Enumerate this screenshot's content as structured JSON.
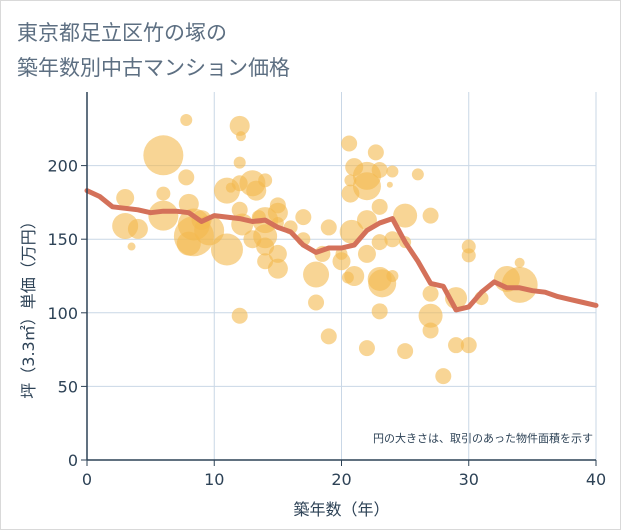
{
  "title_line1": "東京都足立区竹の塚の",
  "title_line2": "築年数別中古マンション価格",
  "chart_data": {
    "type": "scatter",
    "xlabel": "築年数（年）",
    "ylabel": "坪（3.3㎡）単価（万円）",
    "xlim": [
      0,
      40
    ],
    "ylim": [
      0,
      250
    ],
    "xticks": [
      0,
      10,
      20,
      30,
      40
    ],
    "yticks": [
      0,
      50,
      100,
      150,
      200
    ],
    "grid": true,
    "note": "円の大きさは、取引のあった物件面積を示す",
    "colors": {
      "bubble": "#f4b94e",
      "line": "#d4715a",
      "grid": "#c9d7e6",
      "axis": "#2d4256"
    },
    "points": [
      {
        "x": 3,
        "y": 178,
        "s": 9
      },
      {
        "x": 3,
        "y": 159,
        "s": 13
      },
      {
        "x": 3.5,
        "y": 145,
        "s": 4
      },
      {
        "x": 4,
        "y": 157,
        "s": 10
      },
      {
        "x": 6,
        "y": 207,
        "s": 20
      },
      {
        "x": 6,
        "y": 181,
        "s": 7
      },
      {
        "x": 6,
        "y": 166,
        "s": 15
      },
      {
        "x": 7.8,
        "y": 231,
        "s": 6
      },
      {
        "x": 7.8,
        "y": 192,
        "s": 8
      },
      {
        "x": 8,
        "y": 174,
        "s": 10
      },
      {
        "x": 8,
        "y": 147,
        "s": 12
      },
      {
        "x": 8.4,
        "y": 160,
        "s": 16
      },
      {
        "x": 8.4,
        "y": 152,
        "s": 20
      },
      {
        "x": 9,
        "y": 163,
        "s": 10
      },
      {
        "x": 9.6,
        "y": 156,
        "s": 15
      },
      {
        "x": 11,
        "y": 183,
        "s": 13
      },
      {
        "x": 11,
        "y": 143,
        "s": 16
      },
      {
        "x": 11.3,
        "y": 185,
        "s": 5
      },
      {
        "x": 12,
        "y": 227,
        "s": 10
      },
      {
        "x": 12.1,
        "y": 220,
        "s": 5
      },
      {
        "x": 12,
        "y": 202,
        "s": 6
      },
      {
        "x": 12,
        "y": 188,
        "s": 8
      },
      {
        "x": 12,
        "y": 170,
        "s": 8
      },
      {
        "x": 12.2,
        "y": 160,
        "s": 11
      },
      {
        "x": 12,
        "y": 98,
        "s": 8
      },
      {
        "x": 13,
        "y": 188,
        "s": 13
      },
      {
        "x": 13.3,
        "y": 183,
        "s": 10
      },
      {
        "x": 13,
        "y": 150,
        "s": 9
      },
      {
        "x": 13.5,
        "y": 165,
        "s": 7
      },
      {
        "x": 14,
        "y": 190,
        "s": 7
      },
      {
        "x": 14,
        "y": 163,
        "s": 13
      },
      {
        "x": 14,
        "y": 152,
        "s": 12
      },
      {
        "x": 14,
        "y": 145,
        "s": 9
      },
      {
        "x": 14,
        "y": 135,
        "s": 8
      },
      {
        "x": 15,
        "y": 173,
        "s": 8
      },
      {
        "x": 15,
        "y": 168,
        "s": 10
      },
      {
        "x": 15,
        "y": 161,
        "s": 6
      },
      {
        "x": 15,
        "y": 140,
        "s": 9
      },
      {
        "x": 15,
        "y": 130,
        "s": 10
      },
      {
        "x": 16,
        "y": 158,
        "s": 7
      },
      {
        "x": 17,
        "y": 165,
        "s": 8
      },
      {
        "x": 17,
        "y": 150,
        "s": 7
      },
      {
        "x": 18,
        "y": 126,
        "s": 13
      },
      {
        "x": 18,
        "y": 107,
        "s": 8
      },
      {
        "x": 18.5,
        "y": 140,
        "s": 8
      },
      {
        "x": 19,
        "y": 158,
        "s": 8
      },
      {
        "x": 19,
        "y": 84,
        "s": 8
      },
      {
        "x": 20,
        "y": 135,
        "s": 9
      },
      {
        "x": 20,
        "y": 140,
        "s": 6
      },
      {
        "x": 20.5,
        "y": 124,
        "s": 6
      },
      {
        "x": 20.6,
        "y": 215,
        "s": 8
      },
      {
        "x": 21,
        "y": 199,
        "s": 9
      },
      {
        "x": 20.7,
        "y": 190,
        "s": 6
      },
      {
        "x": 20.7,
        "y": 181,
        "s": 9
      },
      {
        "x": 20.8,
        "y": 155,
        "s": 12
      },
      {
        "x": 21,
        "y": 125,
        "s": 10
      },
      {
        "x": 22,
        "y": 193,
        "s": 14
      },
      {
        "x": 22,
        "y": 186,
        "s": 14
      },
      {
        "x": 22,
        "y": 163,
        "s": 10
      },
      {
        "x": 22,
        "y": 140,
        "s": 9
      },
      {
        "x": 22,
        "y": 76,
        "s": 8
      },
      {
        "x": 22.7,
        "y": 209,
        "s": 8
      },
      {
        "x": 23,
        "y": 197,
        "s": 8
      },
      {
        "x": 23,
        "y": 172,
        "s": 8
      },
      {
        "x": 23,
        "y": 148,
        "s": 8
      },
      {
        "x": 23,
        "y": 123,
        "s": 12
      },
      {
        "x": 23.2,
        "y": 120,
        "s": 14
      },
      {
        "x": 23,
        "y": 101,
        "s": 8
      },
      {
        "x": 24,
        "y": 196,
        "s": 6
      },
      {
        "x": 23.8,
        "y": 187,
        "s": 3
      },
      {
        "x": 24,
        "y": 150,
        "s": 8
      },
      {
        "x": 24,
        "y": 125,
        "s": 6
      },
      {
        "x": 25,
        "y": 166,
        "s": 12
      },
      {
        "x": 25,
        "y": 148,
        "s": 6
      },
      {
        "x": 25,
        "y": 74,
        "s": 8
      },
      {
        "x": 26,
        "y": 194,
        "s": 6
      },
      {
        "x": 27,
        "y": 166,
        "s": 8
      },
      {
        "x": 27,
        "y": 113,
        "s": 8
      },
      {
        "x": 27,
        "y": 98,
        "s": 12
      },
      {
        "x": 27,
        "y": 88,
        "s": 8
      },
      {
        "x": 28,
        "y": 57,
        "s": 8
      },
      {
        "x": 29,
        "y": 110,
        "s": 11
      },
      {
        "x": 29,
        "y": 78,
        "s": 8
      },
      {
        "x": 30,
        "y": 145,
        "s": 7
      },
      {
        "x": 30,
        "y": 139,
        "s": 7
      },
      {
        "x": 30,
        "y": 78,
        "s": 8
      },
      {
        "x": 31,
        "y": 110,
        "s": 7
      },
      {
        "x": 33,
        "y": 123,
        "s": 13
      },
      {
        "x": 34,
        "y": 134,
        "s": 5
      },
      {
        "x": 34,
        "y": 119,
        "s": 18
      }
    ],
    "series": [
      {
        "x": [
          0,
          1,
          2,
          3,
          4,
          5,
          6,
          7,
          8,
          9,
          10,
          11,
          12,
          13,
          14,
          15,
          16,
          17,
          18,
          19,
          20,
          21,
          22,
          23,
          24,
          25,
          26,
          27,
          28,
          29,
          30,
          31,
          32,
          33,
          34,
          35,
          36,
          37,
          38,
          39,
          40
        ],
        "y": [
          183,
          179,
          172,
          171,
          170,
          168,
          169,
          169,
          168,
          162,
          166,
          165,
          164,
          162,
          163,
          158,
          155,
          146,
          141,
          144,
          144,
          146,
          156,
          161,
          164,
          148,
          135,
          120,
          118,
          102,
          104,
          114,
          121,
          117,
          117,
          115,
          114,
          111,
          109,
          107,
          105
        ]
      }
    ]
  }
}
